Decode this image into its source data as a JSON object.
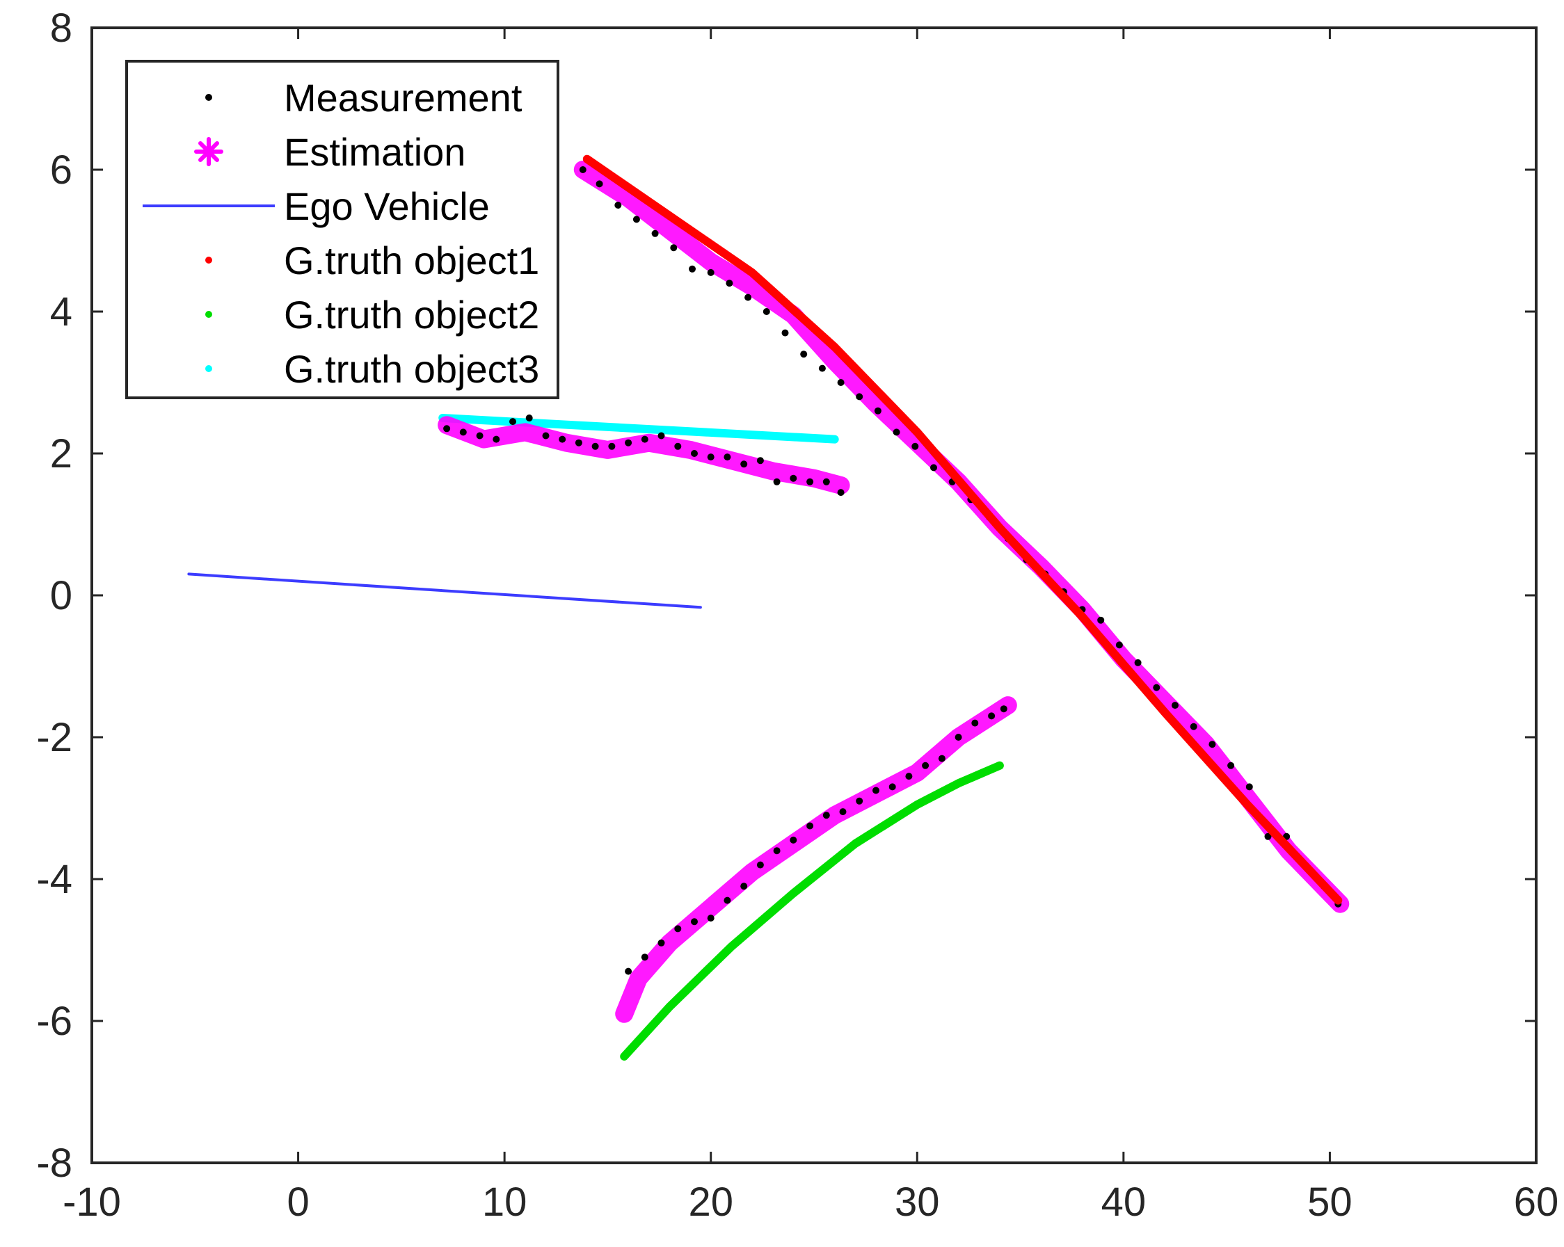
{
  "chart_data": {
    "type": "scatter",
    "title": "",
    "xlabel": "",
    "ylabel": "",
    "xlim": [
      -10,
      60
    ],
    "ylim": [
      -8,
      8
    ],
    "xticks": [
      -10,
      0,
      10,
      20,
      30,
      40,
      50,
      60
    ],
    "yticks": [
      -8,
      -6,
      -4,
      -2,
      0,
      2,
      4,
      6,
      8
    ],
    "grid": false,
    "legend": {
      "position": "top-left",
      "entries": [
        {
          "label": "Measurement",
          "marker": "dot",
          "color": "#000000"
        },
        {
          "label": "Estimation",
          "marker": "star",
          "color": "#ff00ff"
        },
        {
          "label": "Ego Vehicle",
          "marker": "line",
          "color": "#3c3cff"
        },
        {
          "label": "G.truth object1",
          "marker": "dot",
          "color": "#ff0000"
        },
        {
          "label": "G.truth object2",
          "marker": "dot",
          "color": "#00dd00"
        },
        {
          "label": "G.truth object3",
          "marker": "dot",
          "color": "#00ffff"
        }
      ]
    },
    "series": [
      {
        "key": "ego",
        "style": "line",
        "color": "#3c3cff",
        "width": 4,
        "x": [
          -5.3,
          19.5
        ],
        "y": [
          0.3,
          -0.17
        ]
      },
      {
        "key": "gt1",
        "style": "line",
        "color": "#ff0000",
        "width": 12,
        "x": [
          14,
          18,
          22,
          26,
          30,
          34,
          38,
          42,
          46,
          50.4
        ],
        "y": [
          6.15,
          5.35,
          4.55,
          3.5,
          2.3,
          0.95,
          -0.3,
          -1.65,
          -2.95,
          -4.3
        ]
      },
      {
        "key": "gt2",
        "style": "line",
        "color": "#00dd00",
        "width": 12,
        "x": [
          15.8,
          18,
          21,
          24,
          27,
          30,
          32,
          34
        ],
        "y": [
          -6.5,
          -5.8,
          -4.95,
          -4.2,
          -3.5,
          -2.95,
          -2.65,
          -2.4
        ]
      },
      {
        "key": "gt3",
        "style": "line",
        "color": "#00ffff",
        "width": 12,
        "x": [
          7,
          26
        ],
        "y": [
          2.5,
          2.2
        ]
      },
      {
        "key": "est1",
        "style": "band",
        "color": "#ff00ff",
        "width": 26,
        "x": [
          13.8,
          16,
          18,
          20,
          22,
          24,
          26,
          28,
          30,
          32,
          34,
          36,
          38,
          40,
          42,
          44,
          46,
          48,
          50.5
        ],
        "y": [
          6.0,
          5.6,
          5.15,
          4.7,
          4.35,
          3.95,
          3.3,
          2.7,
          2.15,
          1.6,
          0.95,
          0.4,
          -0.2,
          -0.9,
          -1.5,
          -2.1,
          -2.85,
          -3.6,
          -4.35
        ]
      },
      {
        "key": "est2",
        "style": "band",
        "color": "#ff00ff",
        "width": 26,
        "x": [
          15.8,
          16.5,
          18,
          20,
          22,
          24,
          26,
          28,
          30,
          32,
          34.4
        ],
        "y": [
          -5.9,
          -5.4,
          -4.9,
          -4.4,
          -3.9,
          -3.5,
          -3.1,
          -2.8,
          -2.5,
          -2.0,
          -1.55
        ]
      },
      {
        "key": "est3",
        "style": "band",
        "color": "#ff00ff",
        "width": 26,
        "x": [
          7.2,
          9,
          11,
          13,
          15,
          17,
          19,
          21,
          23,
          25,
          26.3
        ],
        "y": [
          2.4,
          2.2,
          2.3,
          2.15,
          2.05,
          2.15,
          2.05,
          1.9,
          1.75,
          1.65,
          1.55
        ]
      },
      {
        "key": "meas1",
        "style": "dots",
        "color": "#000000",
        "radius": 5,
        "x": [
          13.8,
          14.6,
          15.5,
          16.4,
          17.3,
          18.2,
          19.1,
          20.0,
          20.9,
          21.8,
          22.7,
          23.6,
          24.5,
          25.4,
          26.3,
          27.2,
          28.1,
          29.0,
          29.9,
          30.8,
          31.7,
          32.6,
          33.5,
          34.4,
          35.3,
          36.2,
          37.1,
          38.0,
          38.9,
          39.8,
          40.7,
          41.6,
          42.5,
          43.4,
          44.3,
          45.2,
          46.1,
          47.0,
          47.9,
          48.8,
          49.7,
          50.4
        ],
        "y": [
          6.0,
          5.8,
          5.5,
          5.3,
          5.1,
          4.9,
          4.6,
          4.55,
          4.4,
          4.2,
          4.0,
          3.7,
          3.4,
          3.2,
          3.0,
          2.8,
          2.6,
          2.3,
          2.1,
          1.8,
          1.6,
          1.35,
          1.1,
          0.8,
          0.5,
          0.3,
          0.05,
          -0.2,
          -0.35,
          -0.7,
          -0.95,
          -1.3,
          -1.55,
          -1.85,
          -2.1,
          -2.4,
          -2.7,
          -3.4,
          -3.4,
          -3.8,
          -4.1,
          -4.35
        ]
      },
      {
        "key": "meas2",
        "style": "dots",
        "color": "#000000",
        "radius": 5,
        "x": [
          16.0,
          16.8,
          17.6,
          18.4,
          19.2,
          20.0,
          20.8,
          21.6,
          22.4,
          23.2,
          24.0,
          24.8,
          25.6,
          26.4,
          27.2,
          28.0,
          28.8,
          29.6,
          30.4,
          31.2,
          32.0,
          32.8,
          33.6,
          34.2
        ],
        "y": [
          -5.3,
          -5.1,
          -4.9,
          -4.7,
          -4.6,
          -4.55,
          -4.3,
          -4.1,
          -3.8,
          -3.6,
          -3.45,
          -3.25,
          -3.1,
          -3.05,
          -2.9,
          -2.75,
          -2.7,
          -2.55,
          -2.4,
          -2.3,
          -2.0,
          -1.8,
          -1.7,
          -1.6
        ]
      },
      {
        "key": "meas3",
        "style": "dots",
        "color": "#000000",
        "radius": 5,
        "x": [
          7.2,
          8.0,
          8.8,
          9.6,
          10.4,
          11.2,
          12.0,
          12.8,
          13.6,
          14.4,
          15.2,
          16.0,
          16.8,
          17.6,
          18.4,
          19.2,
          20.0,
          20.8,
          21.6,
          22.4,
          23.2,
          24.0,
          24.8,
          25.6,
          26.3
        ],
        "y": [
          2.35,
          2.3,
          2.25,
          2.2,
          2.45,
          2.5,
          2.25,
          2.2,
          2.15,
          2.1,
          2.1,
          2.15,
          2.2,
          2.25,
          2.1,
          2.0,
          1.95,
          1.95,
          1.85,
          1.9,
          1.6,
          1.65,
          1.6,
          1.6,
          1.45
        ]
      }
    ]
  }
}
